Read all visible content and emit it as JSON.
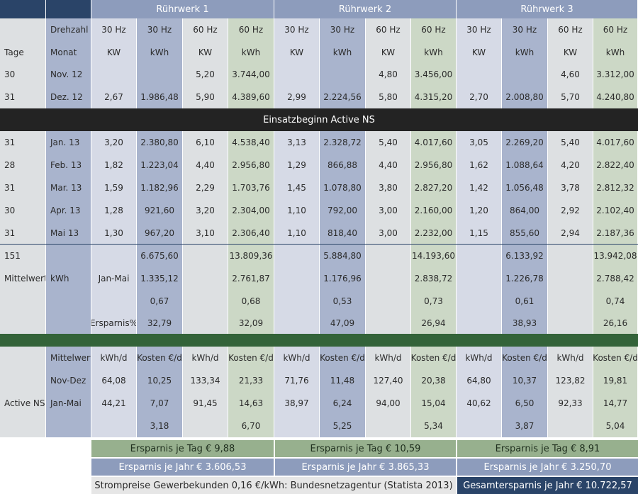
{
  "colors": {
    "navy": "#2a4468",
    "header_blue": "#8d9cbc",
    "grey_blue": "#d6dae6",
    "mid_blue": "#a9b4cd",
    "pale_grey": "#dde0e2",
    "pale_green": "#ccd8c6",
    "dark_band": "#232323",
    "green_band": "#336339",
    "green_bar": "#97b08e",
    "blue_bar": "#8d9cbc",
    "grey_bar": "#e6e6e6",
    "divider_line": "#2a4468"
  },
  "header": {
    "groups": [
      "Rührwerk 1",
      "Rührwerk 2",
      "Rührwerk 3"
    ]
  },
  "rows": [
    [
      "",
      "Drehzahl",
      "30 Hz",
      "30 Hz",
      "60 Hz",
      "60 Hz",
      "30 Hz",
      "30 Hz",
      "60 Hz",
      "60 Hz",
      "30 Hz",
      "30 Hz",
      "60 Hz",
      "60 Hz"
    ],
    [
      "Tage",
      "Monat",
      "KW",
      "kWh",
      "KW",
      "kWh",
      "KW",
      "kWh",
      "KW",
      "kWh",
      "KW",
      "kWh",
      "KW",
      "kWh"
    ],
    [
      "30",
      "Nov. 12",
      "",
      "",
      "5,20",
      "3.744,00",
      "",
      "",
      "4,80",
      "3.456,00",
      "",
      "",
      "4,60",
      "3.312,00"
    ],
    [
      "31",
      "Dez. 12",
      "2,67",
      "1.986,48",
      "5,90",
      "4.389,60",
      "2,99",
      "2.224,56",
      "5,80",
      "4.315,20",
      "2,70",
      "2.008,80",
      "5,70",
      "4.240,80"
    ],
    [
      "31",
      "Jan. 13",
      "3,20",
      "2.380,80",
      "6,10",
      "4.538,40",
      "3,13",
      "2.328,72",
      "5,40",
      "4.017,60",
      "3,05",
      "2.269,20",
      "5,40",
      "4.017,60"
    ],
    [
      "28",
      "Feb. 13",
      "1,82",
      "1.223,04",
      "4,40",
      "2.956,80",
      "1,29",
      "866,88",
      "4,40",
      "2.956,80",
      "1,62",
      "1.088,64",
      "4,20",
      "2.822,40"
    ],
    [
      "31",
      "Mar.  13",
      "1,59",
      "1.182,96",
      "2,29",
      "1.703,76",
      "1,45",
      "1.078,80",
      "3,80",
      "2.827,20",
      "1,42",
      "1.056,48",
      "3,78",
      "2.812,32"
    ],
    [
      "30",
      "Apr. 13",
      "1,28",
      "921,60",
      "3,20",
      "2.304,00",
      "1,10",
      "792,00",
      "3,00",
      "2.160,00",
      "1,20",
      "864,00",
      "2,92",
      "2.102,40"
    ],
    [
      "31",
      "Mai 13",
      "1,30",
      "967,20",
      "3,10",
      "2.306,40",
      "1,10",
      "818,40",
      "3,00",
      "2.232,00",
      "1,15",
      "855,60",
      "2,94",
      "2.187,36"
    ],
    [
      "151",
      "",
      "",
      "6.675,60",
      "",
      "13.809,36",
      "",
      "5.884,80",
      "",
      "14.193,60",
      "",
      "6.133,92",
      "",
      "13.942,08"
    ],
    [
      "Mittelwert",
      "kWh",
      "Jan-Mai",
      "1.335,12",
      "",
      "2.761,87",
      "",
      "1.176,96",
      "",
      "2.838,72",
      "",
      "1.226,78",
      "",
      "2.788,42"
    ],
    [
      "",
      "",
      "",
      "0,67",
      "",
      "0,68",
      "",
      "0,53",
      "",
      "0,73",
      "",
      "0,61",
      "",
      "0,74"
    ],
    [
      "",
      "",
      "Ersparnis%",
      "32,79",
      "",
      "32,09",
      "",
      "47,09",
      "",
      "26,94",
      "",
      "38,93",
      "",
      "26,16"
    ],
    [
      "",
      "Mittelwert",
      "kWh/d",
      "Kosten €/d",
      "kWh/d",
      "Kosten €/d",
      "kWh/d",
      "Kosten €/d",
      "kWh/d",
      "Kosten €/d",
      "kWh/d",
      "Kosten €/d",
      "kWh/d",
      "Kosten €/d"
    ],
    [
      "",
      "Nov-Dez",
      "64,08",
      "10,25",
      "133,34",
      "21,33",
      "71,76",
      "11,48",
      "127,40",
      "20,38",
      "64,80",
      "10,37",
      "123,82",
      "19,81"
    ],
    [
      "Active NS",
      "Jan-Mai",
      "44,21",
      "7,07",
      "91,45",
      "14,63",
      "38,97",
      "6,24",
      "94,00",
      "15,04",
      "40,62",
      "6,50",
      "92,33",
      "14,77"
    ],
    [
      "",
      "",
      "",
      "3,18",
      "",
      "6,70",
      "",
      "5,25",
      "",
      "5,34",
      "",
      "3,87",
      "",
      "5,04"
    ]
  ],
  "banner_text": "Einsatzbeginn Active NS",
  "savings": {
    "per_day": [
      "Ersparnis je Tag € 9,88",
      "Ersparnis je Tag € 10,59",
      "Ersparnis je Tag € 8,91"
    ],
    "per_year": [
      "Ersparnis je Jahr € 3.606,53",
      "Ersparnis je Jahr € 3.865,33",
      "Ersparnis je Jahr € 3.250,70"
    ],
    "source_note": "Strompreise Gewerbekunden 0,16 €/kWh: Bundesnetzagentur (Statista 2013)",
    "total": "Gesamtersparnis je Jahr € 10.722,57"
  }
}
